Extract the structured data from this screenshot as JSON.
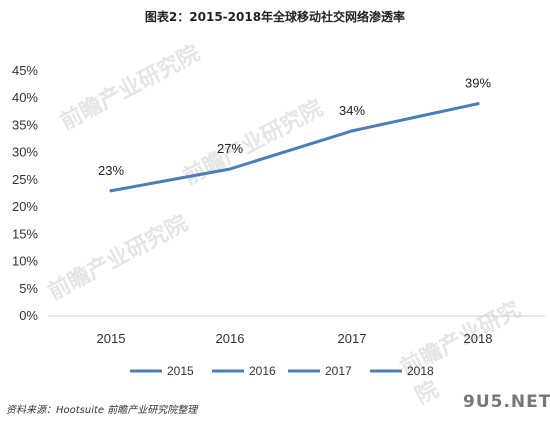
{
  "chart_data": {
    "type": "line",
    "title": "图表2：2015-2018年全球移动社交网络渗透率",
    "x": [
      "2015",
      "2016",
      "2017",
      "2018"
    ],
    "series": [
      {
        "values": [
          23,
          27,
          34,
          39
        ],
        "labels": [
          "23%",
          "27%",
          "34%",
          "39%"
        ]
      }
    ],
    "y_ticks": [
      "0%",
      "5%",
      "10%",
      "15%",
      "20%",
      "25%",
      "30%",
      "35%",
      "40%",
      "45%"
    ],
    "ylim": [
      0,
      45
    ],
    "grid": false,
    "legend": {
      "placement": "bottom",
      "entries": [
        "2015",
        "2016",
        "2017",
        "2018"
      ]
    },
    "line_color": "#4a7ebb"
  },
  "source_note": "资料来源：Hootsuite 前瞻产业研究院整理",
  "watermarks": [
    "前瞻产业研究院",
    "前瞻产业研究院",
    "前瞻产业研究院",
    "前瞻产业研究院"
  ],
  "site_watermark": "9U5.NET"
}
